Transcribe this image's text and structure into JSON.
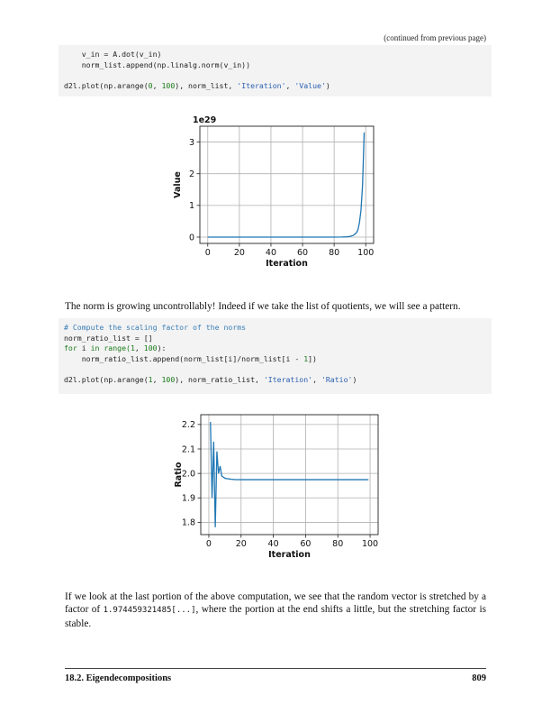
{
  "continued_label": "(continued from previous page)",
  "code_block_1": {
    "line1": "    v_in = A.dot(v_in)",
    "line2": "    norm_list.append(np.linalg.norm(v_in))",
    "line3_fn": "d2l.plot(np.arange(",
    "line3_n1": "0",
    "line3_sep": ", ",
    "line3_n2": "100",
    "line3_mid": "), norm_list, ",
    "line3_s1": "'Iteration'",
    "line3_comma": ", ",
    "line3_s2": "'Value'",
    "line3_end": ")"
  },
  "paragraph_1": "The norm is growing uncontrollably! Indeed if we take the list of quotients, we will see a pattern.",
  "code_block_2": {
    "comment": "# Compute the scaling factor of the norms",
    "line2": "norm_ratio_list = []",
    "line3_kw1": "for",
    "line3_mid": " i ",
    "line3_kw2": "in",
    "line3_fn": " range(",
    "line3_n1": "1",
    "line3_sep": ", ",
    "line3_n2": "100",
    "line3_end": "):",
    "line4_a": "    norm_ratio_list.append(norm_list[i]/norm_list[i - ",
    "line4_n": "1",
    "line4_b": "])",
    "line6_fn": "d2l.plot(np.arange(",
    "line6_n1": "1",
    "line6_sep": ", ",
    "line6_n2": "100",
    "line6_mid": "), norm_ratio_list, ",
    "line6_s1": "'Iteration'",
    "line6_comma": ", ",
    "line6_s2": "'Ratio'",
    "line6_end": ")"
  },
  "paragraph_2_a": "If we look at the last portion of the above computation, we see that the random vector is stretched by a factor of ",
  "paragraph_2_code": "1.974459321485[...]",
  "paragraph_2_b": ", where the portion at the end shifts a little, but the stretching factor is stable.",
  "footer": {
    "section": "18.2. Eigendecompositions",
    "page_number": "809"
  },
  "chart_data": [
    {
      "type": "line",
      "xlabel": "Iteration",
      "ylabel": "Value",
      "offset_label": "1e29",
      "xlim": [
        -5,
        105
      ],
      "ylim": [
        -0.2,
        3.5
      ],
      "xticks": [
        0,
        20,
        40,
        60,
        80,
        100
      ],
      "yticks": [
        0,
        1,
        2,
        3
      ],
      "grid": true,
      "line_color": "#1f77b4",
      "x": [
        0,
        10,
        20,
        30,
        40,
        50,
        60,
        70,
        80,
        85,
        88,
        90,
        92,
        94,
        95,
        96,
        97,
        98,
        99
      ],
      "y": [
        0,
        0,
        0,
        0,
        0,
        0,
        0,
        0,
        0,
        0.002,
        0.008,
        0.02,
        0.05,
        0.13,
        0.22,
        0.45,
        0.85,
        1.65,
        3.3
      ]
    },
    {
      "type": "line",
      "xlabel": "Iteration",
      "ylabel": "Ratio",
      "xlim": [
        -5,
        105
      ],
      "ylim": [
        1.75,
        2.24
      ],
      "xticks": [
        0,
        20,
        40,
        60,
        80,
        100
      ],
      "yticks": [
        1.8,
        1.9,
        2.0,
        2.1,
        2.2
      ],
      "grid": true,
      "line_color": "#1f77b4",
      "x": [
        1,
        2,
        3,
        4,
        5,
        6,
        7,
        8,
        9,
        10,
        12,
        14,
        16,
        20,
        30,
        40,
        60,
        80,
        99
      ],
      "y": [
        2.21,
        1.9,
        2.13,
        1.78,
        2.09,
        2.0,
        2.03,
        1.99,
        1.985,
        1.98,
        1.978,
        1.976,
        1.975,
        1.9745,
        1.9745,
        1.9745,
        1.9745,
        1.9745,
        1.9745
      ]
    }
  ]
}
